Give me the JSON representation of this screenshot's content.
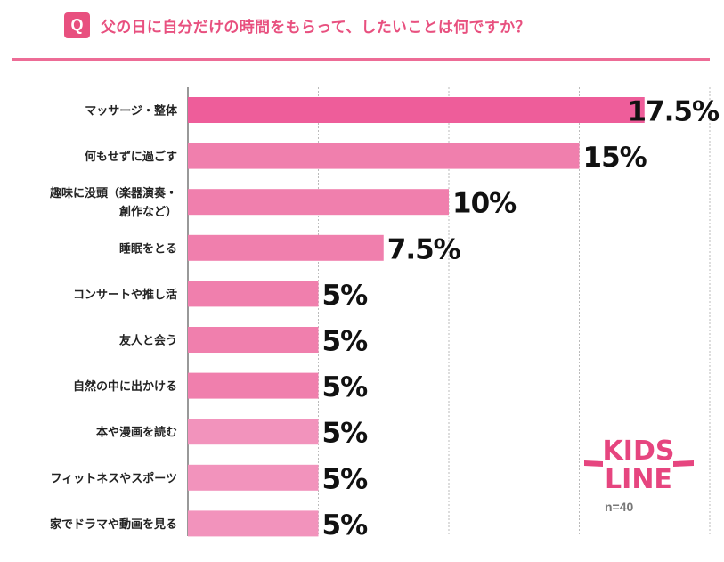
{
  "header": {
    "badge": "Q",
    "question": "父の日に自分だけの時間をもらって、したいことは何ですか？"
  },
  "sample": "n=40",
  "logo": {
    "line1": "KIDS",
    "line2": "LINE"
  },
  "colors": {
    "accent": "#e8507f",
    "bar_top": "#ee5d9a",
    "bar": "#f07fad",
    "bar_light": "#f293bc",
    "grid": "#bbbbbb"
  },
  "chart_data": {
    "type": "bar",
    "orientation": "horizontal",
    "categories": [
      [
        "マッサージ・整体"
      ],
      [
        "何もせずに過ごす"
      ],
      [
        "趣味に没頭（楽器演奏・",
        "創作など）"
      ],
      [
        "睡眠をとる"
      ],
      [
        "コンサートや推し活"
      ],
      [
        "友人と会う"
      ],
      [
        "自然の中に出かける"
      ],
      [
        "本や漫画を読む"
      ],
      [
        "フィットネスやスポーツ"
      ],
      [
        "家でドラマや動画を見る"
      ]
    ],
    "values": [
      17.5,
      15,
      10,
      7.5,
      5,
      5,
      5,
      5,
      5,
      5
    ],
    "value_labels": [
      "17.5%",
      "15%",
      "10%",
      "7.5%",
      "5%",
      "5%",
      "5%",
      "5%",
      "5%",
      "5%"
    ],
    "unit": "%",
    "xlim": [
      0,
      20
    ],
    "gridlines": [
      5,
      10,
      15,
      20
    ],
    "n": 40
  }
}
